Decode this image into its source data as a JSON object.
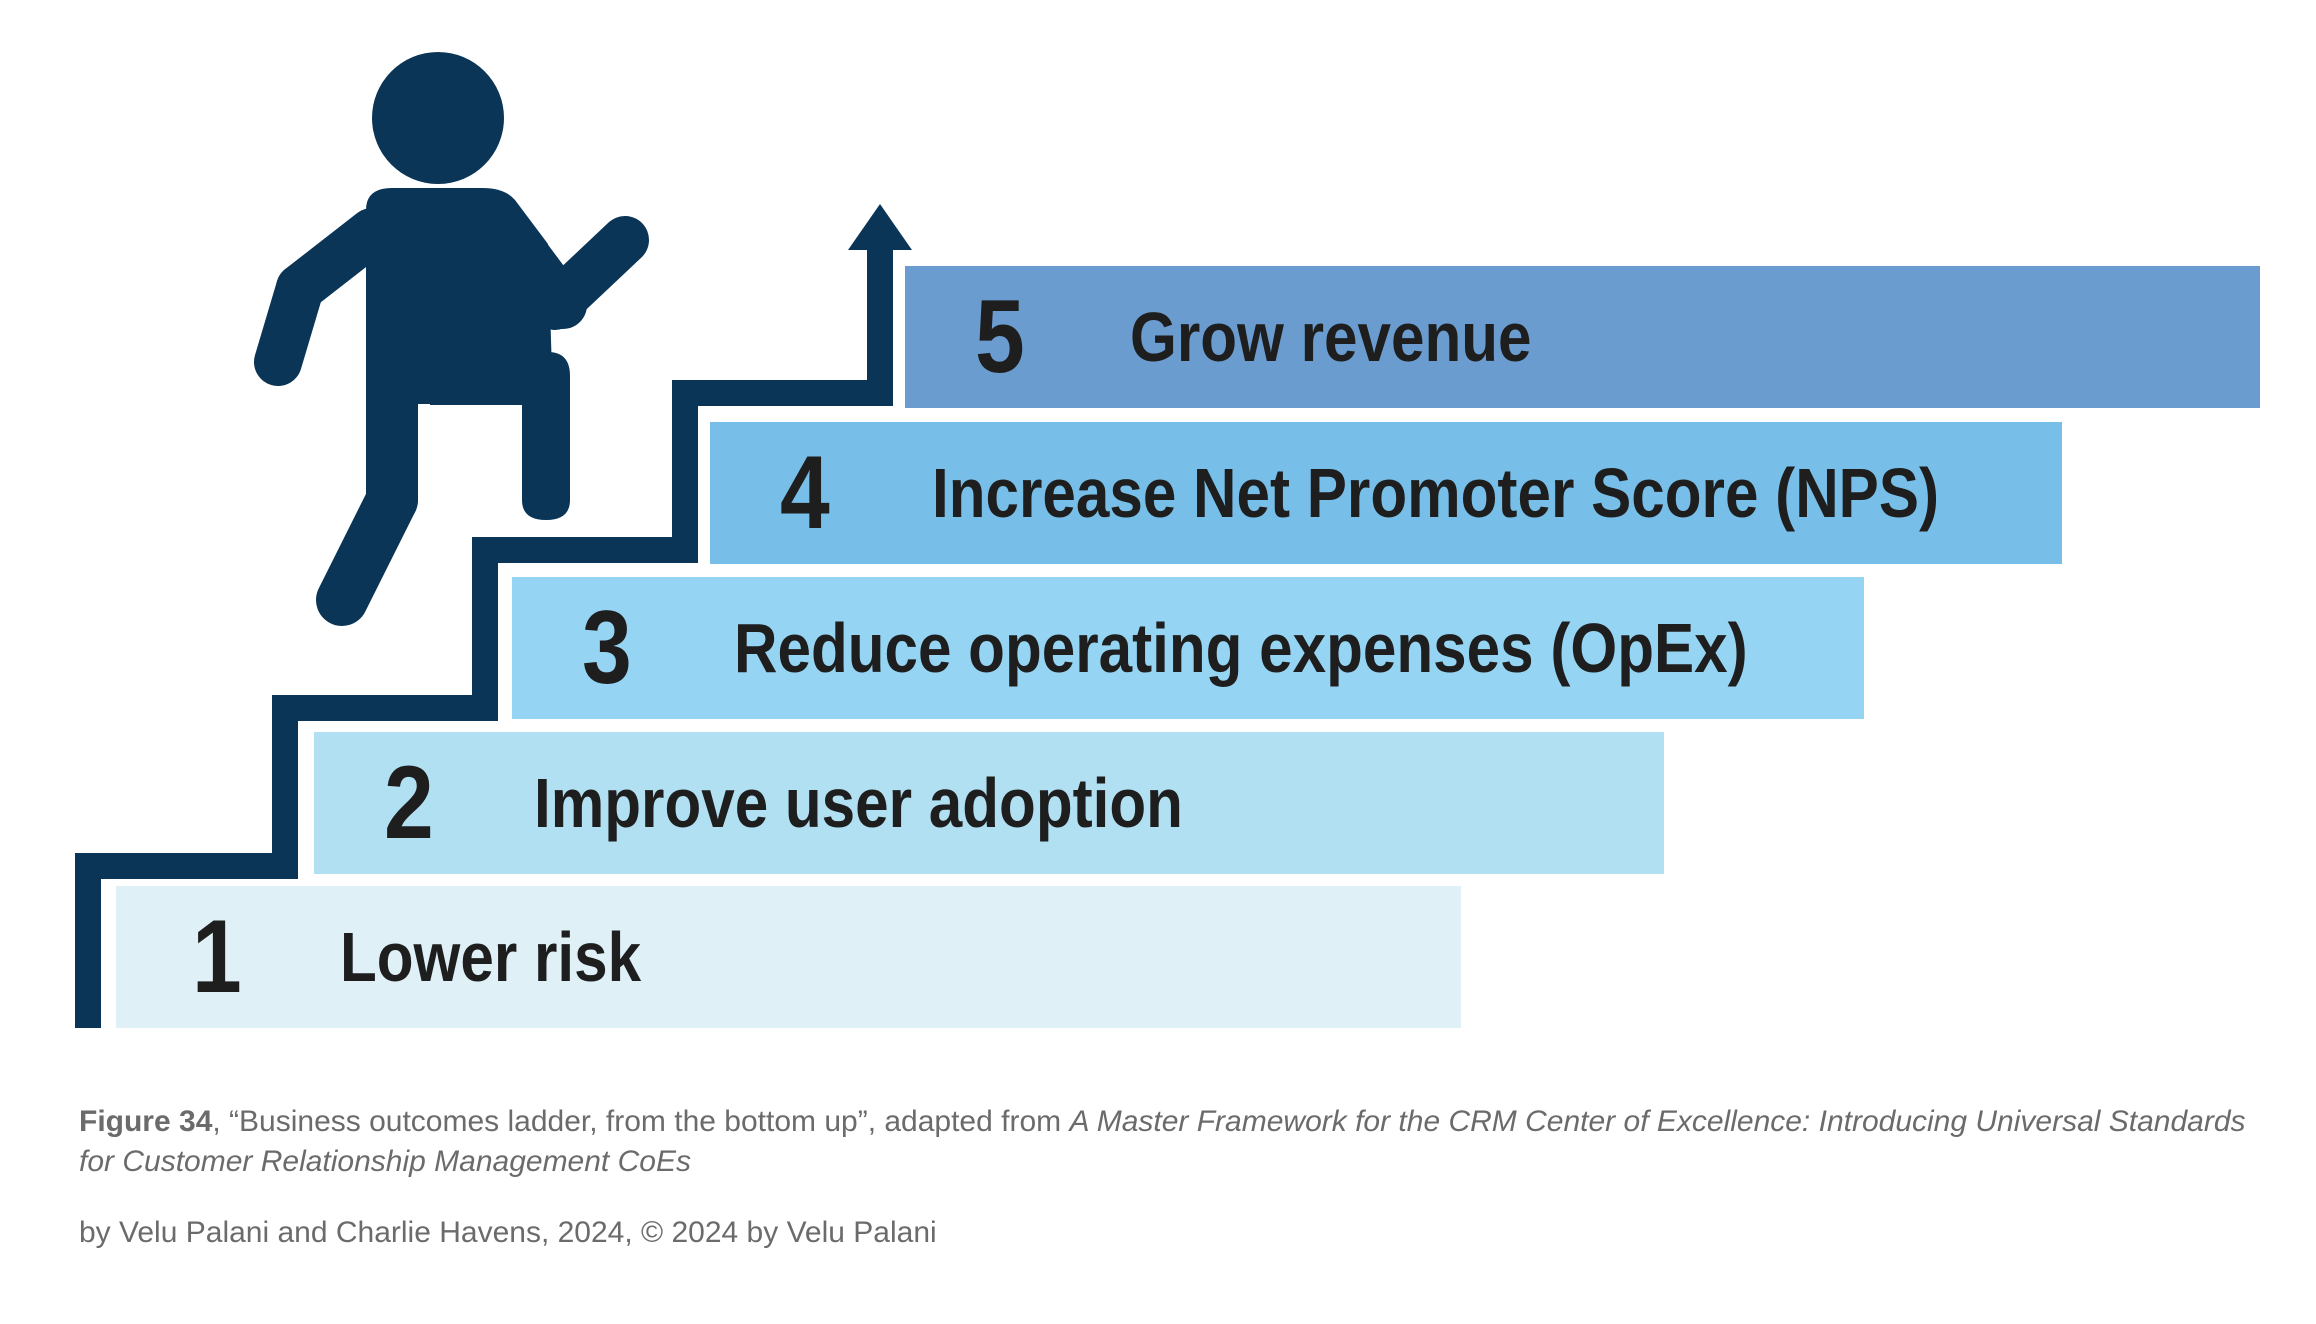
{
  "colors": {
    "stair": "#0b3556",
    "figure": "#0b3556",
    "text": "#1e1e1e",
    "caption": "#6b6b6b",
    "step_fills": [
      "#dff0f7",
      "#b1e0f3",
      "#95d5f3",
      "#77bfe8",
      "#6a9ccf"
    ]
  },
  "steps": [
    {
      "number": "1",
      "label": "Lower risk"
    },
    {
      "number": "2",
      "label": "Improve user adoption"
    },
    {
      "number": "3",
      "label": "Reduce operating expenses (OpEx)"
    },
    {
      "number": "4",
      "label": "Increase Net Promoter Score (NPS)"
    },
    {
      "number": "5",
      "label": "Grow revenue"
    }
  ],
  "icons": {
    "person": "walking-person-icon",
    "arrow": "arrow-up-icon"
  },
  "caption": {
    "figure_number": "Figure 34",
    "text": ", “Business outcomes ladder, from the bottom up”, adapted from ",
    "source_title": "A Master Framework for the CRM Center of Excellence: Introducing Universal Standards for Customer Relationship Management CoEs",
    "credit": "by Velu Palani and Charlie Havens, 2024, © 2024 by Velu Palani"
  }
}
